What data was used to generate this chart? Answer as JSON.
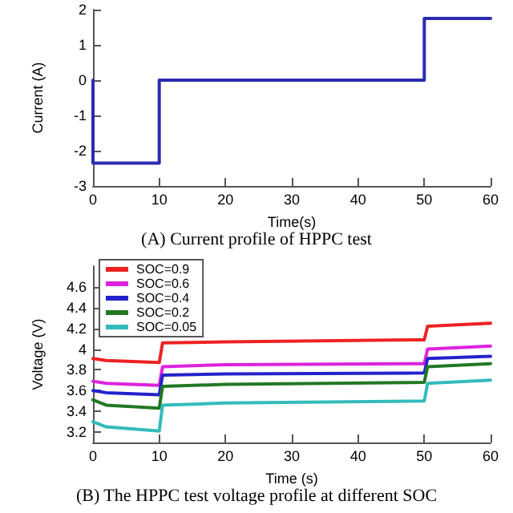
{
  "chart_data": [
    {
      "type": "line",
      "title": "(A) Current profile of HPPC test",
      "xlabel": "Time(s)",
      "ylabel": "Current (A)",
      "x": [
        0,
        0,
        10,
        10,
        50,
        50,
        60
      ],
      "series": [
        {
          "color": "#2b2bb0",
          "values": [
            0,
            -2.35,
            -2.35,
            0,
            0,
            1.75,
            1.75
          ]
        }
      ],
      "xlim": [
        0,
        60
      ],
      "xticks": [
        0,
        10,
        20,
        30,
        40,
        50,
        60
      ],
      "ylim": [
        -3,
        2
      ],
      "yticks": [
        -3,
        -2,
        -1,
        0,
        1,
        2
      ],
      "grid": false,
      "legend": false
    },
    {
      "type": "line",
      "title": "(B) The HPPC test voltage profile at different SOC",
      "xlabel": "Time (s)",
      "ylabel": "Voltage (V)",
      "x": [
        0,
        2,
        10,
        10.5,
        20,
        50,
        50.5,
        60
      ],
      "series": [
        {
          "name": "SOC=0.9",
          "color": "#ee2222",
          "values": [
            3.91,
            3.89,
            3.87,
            4.06,
            4.07,
            4.09,
            4.22,
            4.25
          ]
        },
        {
          "name": "SOC=0.6",
          "color": "#dd22dd",
          "values": [
            3.69,
            3.67,
            3.65,
            3.83,
            3.85,
            3.86,
            4.0,
            4.03
          ]
        },
        {
          "name": "SOC=0.4",
          "color": "#2222cc",
          "values": [
            3.6,
            3.58,
            3.56,
            3.75,
            3.76,
            3.77,
            3.91,
            3.93
          ]
        },
        {
          "name": "SOC=0.2",
          "color": "#227722",
          "values": [
            3.51,
            3.46,
            3.43,
            3.64,
            3.66,
            3.68,
            3.83,
            3.86
          ]
        },
        {
          "name": "SOC=0.05",
          "color": "#33bbbb",
          "values": [
            3.3,
            3.25,
            3.21,
            3.46,
            3.48,
            3.5,
            3.67,
            3.7
          ]
        }
      ],
      "xlim": [
        0,
        60
      ],
      "xticks": [
        0,
        10,
        20,
        30,
        40,
        50,
        60
      ],
      "ylim": [
        3.1,
        4.8
      ],
      "yticks": [
        3.2,
        3.4,
        3.6,
        3.8,
        4,
        4.2,
        4.4,
        4.6
      ],
      "grid": false,
      "legend": "top left"
    }
  ]
}
